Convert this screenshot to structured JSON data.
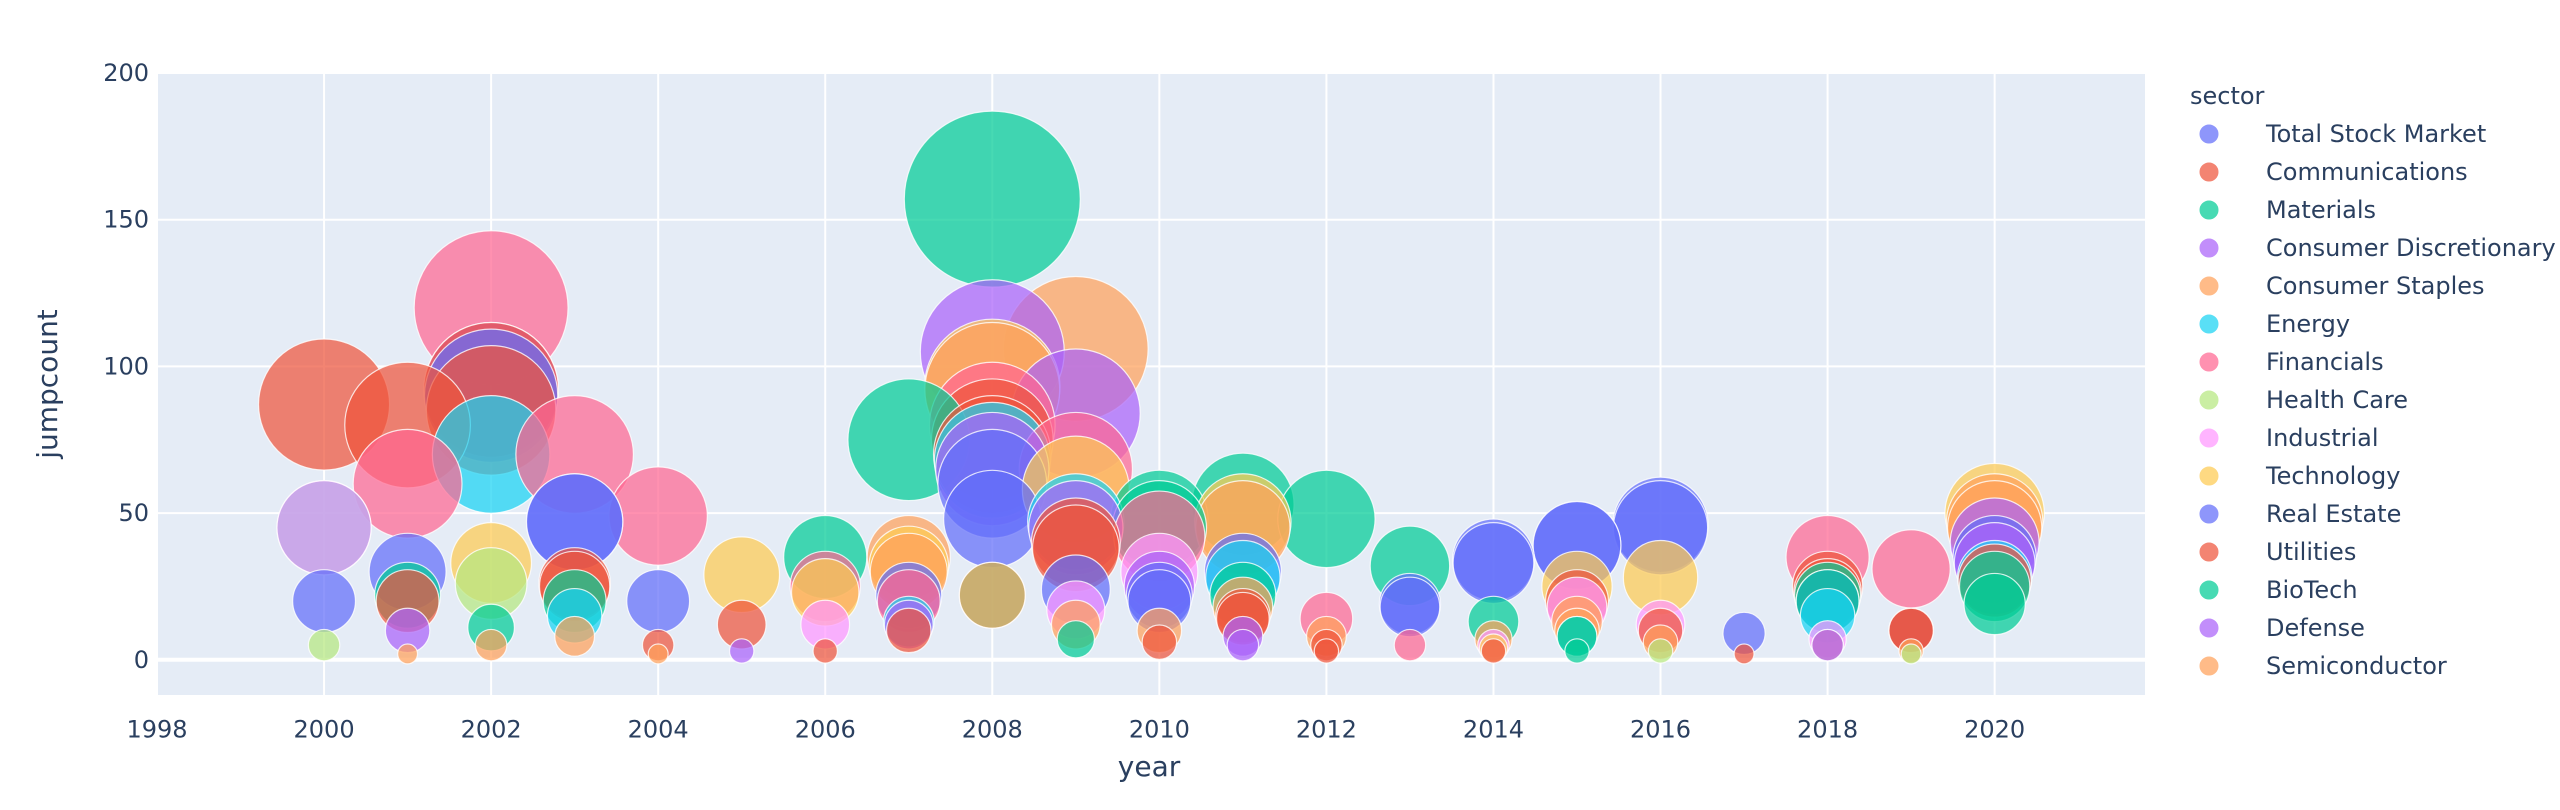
{
  "chart_data": {
    "type": "scatter",
    "xlabel": "year",
    "ylabel": "jumpcount",
    "xlim": [
      1998,
      2021.8
    ],
    "ylim": [
      -12,
      200
    ],
    "xticks": [
      1998,
      2000,
      2002,
      2004,
      2006,
      2008,
      2010,
      2012,
      2014,
      2016,
      2018,
      2020
    ],
    "yticks": [
      0,
      50,
      100,
      150,
      200
    ],
    "legend_title": "sector",
    "legend_position": "right",
    "plot_background": "#e5ecf6",
    "grid": true,
    "series": [
      {
        "name": "Total Stock Market",
        "color": "#636efa",
        "points": [
          [
            2000,
            20
          ],
          [
            2001,
            30
          ],
          [
            2002,
            90
          ],
          [
            2003,
            47
          ],
          [
            2004,
            20
          ],
          [
            2007,
            22
          ],
          [
            2008,
            60
          ],
          [
            2009,
            24
          ],
          [
            2010,
            20
          ],
          [
            2011,
            30
          ],
          [
            2013,
            19
          ],
          [
            2014,
            33
          ],
          [
            2015,
            39
          ],
          [
            2016,
            45
          ],
          [
            2017,
            9
          ],
          [
            2018,
            20
          ],
          [
            2019,
            10
          ],
          [
            2020,
            35
          ]
        ]
      },
      {
        "name": "Communications",
        "color": "#ef553b",
        "points": [
          [
            2000,
            87
          ],
          [
            2001,
            20
          ],
          [
            2002,
            85
          ],
          [
            2003,
            26
          ],
          [
            2004,
            5
          ],
          [
            2006,
            3
          ],
          [
            2007,
            10
          ],
          [
            2008,
            75
          ],
          [
            2009,
            40
          ],
          [
            2010,
            6
          ],
          [
            2011,
            14
          ],
          [
            2012,
            3
          ],
          [
            2014,
            3
          ],
          [
            2015,
            20
          ],
          [
            2016,
            10
          ],
          [
            2017,
            2
          ],
          [
            2018,
            23
          ],
          [
            2019,
            10
          ],
          [
            2020,
            27
          ]
        ]
      },
      {
        "name": "Materials",
        "color": "#00cc96",
        "points": [
          [
            2000,
            45
          ],
          [
            2001,
            22
          ],
          [
            2002,
            11
          ],
          [
            2003,
            20
          ],
          [
            2006,
            35
          ],
          [
            2007,
            75
          ],
          [
            2008,
            157
          ],
          [
            2009,
            7
          ],
          [
            2010,
            48
          ],
          [
            2011,
            53
          ],
          [
            2012,
            48
          ],
          [
            2013,
            32
          ],
          [
            2014,
            13
          ],
          [
            2015,
            3
          ],
          [
            2018,
            22
          ],
          [
            2020,
            19
          ]
        ]
      },
      {
        "name": "Consumer Discretionary",
        "color": "#ab63fa",
        "points": [
          [
            2001,
            10
          ],
          [
            2002,
            92
          ],
          [
            2005,
            3
          ],
          [
            2008,
            105
          ],
          [
            2009,
            84
          ],
          [
            2011,
            5
          ],
          [
            2020,
            33
          ]
        ]
      },
      {
        "name": "Consumer Staples",
        "color": "#ffa15a",
        "points": [
          [
            2001,
            2
          ],
          [
            2002,
            5
          ],
          [
            2004,
            2
          ],
          [
            2007,
            35
          ],
          [
            2008,
            92
          ],
          [
            2009,
            106
          ],
          [
            2011,
            45
          ],
          [
            2014,
            7
          ],
          [
            2015,
            10
          ],
          [
            2018,
            5
          ],
          [
            2020,
            47
          ]
        ]
      },
      {
        "name": "Energy",
        "color": "#19d3f3",
        "points": [
          [
            2002,
            70
          ],
          [
            2003,
            15
          ],
          [
            2007,
            13
          ],
          [
            2008,
            68
          ],
          [
            2009,
            47
          ],
          [
            2011,
            28
          ],
          [
            2015,
            8
          ],
          [
            2018,
            15
          ],
          [
            2020,
            28
          ]
        ]
      },
      {
        "name": "Financials",
        "color": "#ff6692",
        "points": [
          [
            2001,
            60
          ],
          [
            2002,
            120
          ],
          [
            2003,
            70
          ],
          [
            2004,
            49
          ],
          [
            2006,
            25
          ],
          [
            2007,
            20
          ],
          [
            2008,
            80
          ],
          [
            2009,
            65
          ],
          [
            2010,
            42
          ],
          [
            2012,
            14
          ],
          [
            2013,
            5
          ],
          [
            2018,
            35
          ],
          [
            2019,
            31
          ]
        ]
      },
      {
        "name": "Health Care",
        "color": "#b6e880",
        "points": [
          [
            2000,
            5
          ],
          [
            2002,
            26
          ],
          [
            2016,
            3
          ],
          [
            2019,
            2
          ]
        ]
      },
      {
        "name": "Industrial",
        "color": "#ff97ff",
        "points": [
          [
            2000,
            45
          ],
          [
            2006,
            12
          ],
          [
            2009,
            17
          ],
          [
            2010,
            30
          ],
          [
            2014,
            5
          ],
          [
            2015,
            18
          ],
          [
            2016,
            12
          ],
          [
            2018,
            7
          ]
        ]
      },
      {
        "name": "Technology",
        "color": "#fecb52",
        "points": [
          [
            2002,
            33
          ],
          [
            2005,
            29
          ],
          [
            2006,
            23
          ],
          [
            2007,
            32
          ],
          [
            2008,
            93
          ],
          [
            2009,
            58
          ],
          [
            2011,
            47
          ],
          [
            2014,
            4
          ],
          [
            2015,
            25
          ],
          [
            2016,
            28
          ],
          [
            2020,
            50
          ]
        ]
      },
      {
        "name": "Real Estate",
        "color": "#636efa",
        "points": [
          [
            2003,
            47
          ],
          [
            2008,
            48
          ],
          [
            2010,
            22
          ],
          [
            2013,
            18
          ],
          [
            2014,
            34
          ],
          [
            2015,
            39
          ],
          [
            2016,
            46
          ]
        ]
      },
      {
        "name": "Utilities",
        "color": "#ef553b",
        "points": [
          [
            2001,
            80
          ],
          [
            2002,
            92
          ],
          [
            2003,
            25
          ],
          [
            2005,
            12
          ],
          [
            2008,
            70
          ],
          [
            2009,
            38
          ],
          [
            2011,
            15
          ],
          [
            2012,
            5
          ],
          [
            2018,
            25
          ],
          [
            2019,
            10
          ]
        ]
      },
      {
        "name": "BioTech",
        "color": "#00cc96",
        "points": [
          [
            2008,
            22
          ],
          [
            2010,
            45
          ],
          [
            2011,
            22
          ],
          [
            2015,
            8
          ],
          [
            2018,
            20
          ],
          [
            2020,
            25
          ]
        ]
      },
      {
        "name": "Defense",
        "color": "#ab63fa",
        "points": [
          [
            2007,
            12
          ],
          [
            2008,
            65
          ],
          [
            2009,
            45
          ],
          [
            2010,
            25
          ],
          [
            2011,
            8
          ],
          [
            2018,
            5
          ],
          [
            2020,
            40
          ]
        ]
      },
      {
        "name": "Semiconductor",
        "color": "#ffa15a",
        "points": [
          [
            2003,
            8
          ],
          [
            2007,
            30
          ],
          [
            2008,
            22
          ],
          [
            2009,
            12
          ],
          [
            2010,
            10
          ],
          [
            2011,
            18
          ],
          [
            2012,
            8
          ],
          [
            2015,
            13
          ],
          [
            2016,
            6
          ],
          [
            2019,
            3
          ],
          [
            2020,
            45
          ]
        ]
      }
    ]
  }
}
